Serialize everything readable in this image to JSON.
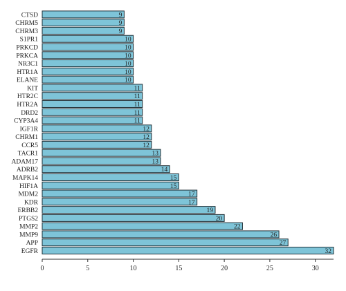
{
  "chart_data": {
    "type": "bar",
    "orientation": "horizontal",
    "categories": [
      "CTSD",
      "CHRM5",
      "CHRM3",
      "S1PR1",
      "PRKCD",
      "PRKCA",
      "NR3C1",
      "HTR1A",
      "ELANE",
      "KIT",
      "HTR2C",
      "HTR2A",
      "DRD2",
      "CYP3A4",
      "IGF1R",
      "CHRM1",
      "CCR5",
      "TACR1",
      "ADAM17",
      "ADRB2",
      "MAPK14",
      "HIF1A",
      "MDM2",
      "KDR",
      "ERBB2",
      "PTGS2",
      "MMP2",
      "MMP9",
      "APP",
      "EGFR"
    ],
    "values": [
      9,
      9,
      9,
      10,
      10,
      10,
      10,
      10,
      10,
      11,
      11,
      11,
      11,
      11,
      12,
      12,
      12,
      13,
      13,
      14,
      15,
      15,
      17,
      17,
      19,
      20,
      22,
      26,
      27,
      32
    ],
    "xlim": [
      0,
      32
    ],
    "xticks": [
      0,
      5,
      10,
      15,
      20,
      25,
      30
    ],
    "title": "",
    "xlabel": "",
    "ylabel": "",
    "grid": false,
    "legend": "none",
    "bar_color": "#7ec4d8",
    "bar_edge_color": "#1f2f36",
    "axis_color": "#333333",
    "label_color": "#222222"
  }
}
